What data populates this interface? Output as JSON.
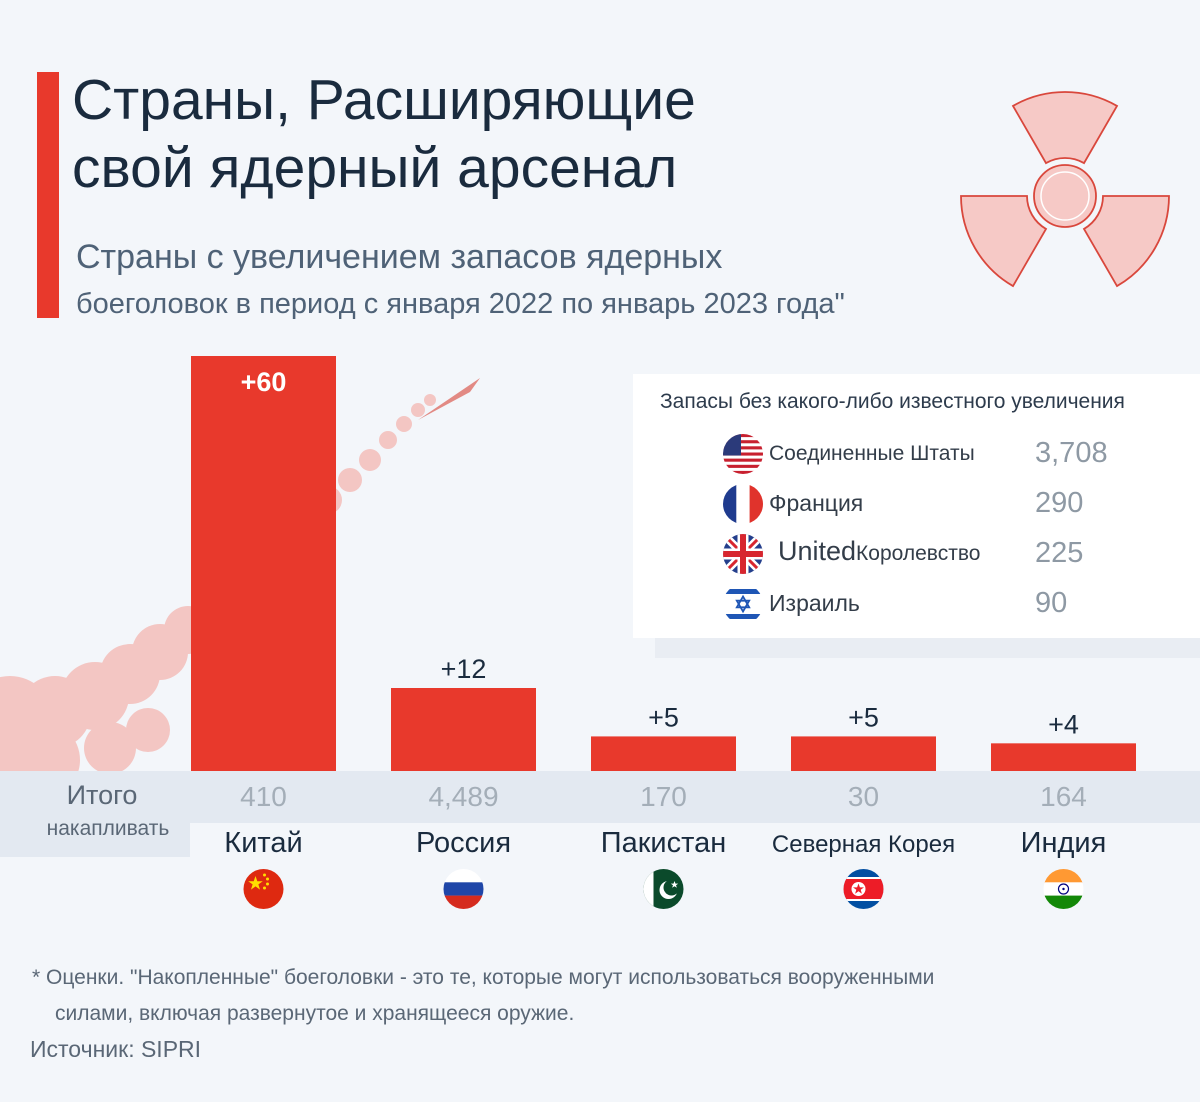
{
  "header": {
    "title_line1": "Страны, Расширяющие",
    "title_line2": "свой ядерный арсенал",
    "subtitle_line1": "Страны с увеличением запасов ядерных",
    "subtitle_line2": "боеголовок в период с января 2022 по январь 2023 года\""
  },
  "colors": {
    "accent": "#e8392c",
    "bar": "#e8392c",
    "band": "#e3e9f1",
    "trefoil_fill": "#f6c9c6",
    "trefoil_stroke": "#d9473c",
    "smoke": "#f3c6c3"
  },
  "icons": {
    "decoration": "radiation-trefoil-icon",
    "rocket": "rocket-trail-icon"
  },
  "chart_data": {
    "type": "bar",
    "categories": [
      "Китай",
      "Россия",
      "Пакистан",
      "Северная Корея",
      "Индия"
    ],
    "values": [
      60,
      12,
      5,
      5,
      4
    ],
    "value_labels": [
      "+60",
      "+12",
      "+5",
      "+5",
      "+4"
    ],
    "totals": [
      "410",
      "4,489",
      "170",
      "30",
      "164"
    ],
    "flags": [
      "china-flag-icon",
      "russia-flag-icon",
      "pakistan-flag-icon",
      "north-korea-flag-icon",
      "india-flag-icon"
    ],
    "totals_label_line1": "Итого",
    "totals_label_line2": "накапливать",
    "ylim": [
      0,
      60
    ],
    "grid": false
  },
  "legend": {
    "title": "Запасы без какого-либо известного увеличения",
    "rows": [
      {
        "country": "Соединенные Штаты",
        "value": "3,708",
        "flag": "usa-flag-icon"
      },
      {
        "country": "Франция",
        "value": "290",
        "flag": "france-flag-icon"
      },
      {
        "country_prefix": "United",
        "country_suffix": "Королевство",
        "value": "225",
        "flag": "uk-flag-icon"
      },
      {
        "country": "Израиль",
        "value": "90",
        "flag": "israel-flag-icon"
      }
    ]
  },
  "footer": {
    "note_line1": "* Оценки. \"Накопленные\" боеголовки - это те, которые могут использоваться вооруженными",
    "note_line2": "силами, включая развернутое и хранящееся оружие.",
    "source": "Источник: SIPRI"
  }
}
